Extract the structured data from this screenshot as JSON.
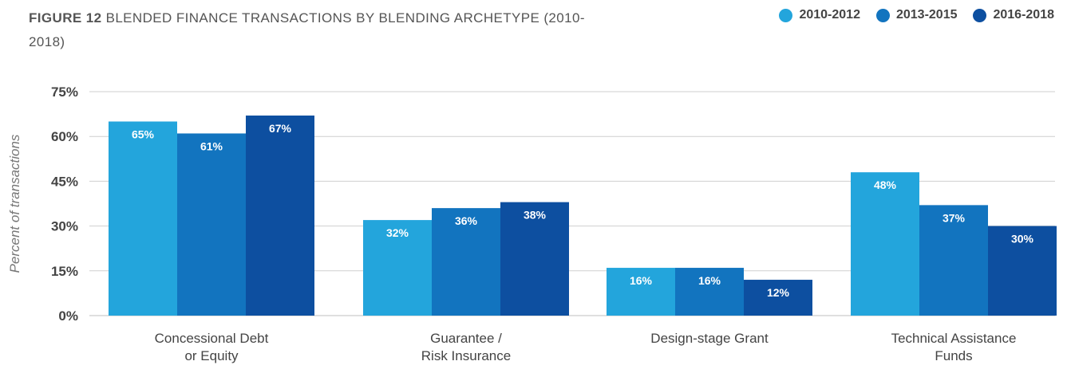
{
  "header": {
    "figure_label": "FIGURE 12",
    "title": "BLENDED FINANCE TRANSACTIONS BY BLENDING ARCHETYPE (2010-2018)"
  },
  "chart_data": {
    "type": "bar",
    "ylabel": "Percent of transactions",
    "xlabel": "",
    "ylim": [
      0,
      75
    ],
    "yticks": [
      "0%",
      "15%",
      "30%",
      "45%",
      "60%",
      "75%"
    ],
    "ytick_values": [
      0,
      15,
      30,
      45,
      60,
      75
    ],
    "grid": true,
    "legend_position": "top-right",
    "categories": [
      [
        "Concessional Debt",
        "or Equity"
      ],
      [
        "Guarantee /",
        "Risk Insurance"
      ],
      [
        "Design-stage Grant"
      ],
      [
        "Technical Assistance",
        "Funds"
      ]
    ],
    "series": [
      {
        "name": "2010-2012",
        "color": "#23a5dc",
        "values": [
          65,
          32,
          16,
          48
        ],
        "labels": [
          "65%",
          "32%",
          "16%",
          "48%"
        ]
      },
      {
        "name": "2013-2015",
        "color": "#1274bf",
        "values": [
          61,
          36,
          16,
          37
        ],
        "labels": [
          "61%",
          "36%",
          "16%",
          "37%"
        ]
      },
      {
        "name": "2016-2018",
        "color": "#0d4fa0",
        "values": [
          67,
          38,
          12,
          30
        ],
        "labels": [
          "67%",
          "38%",
          "12%",
          "30%"
        ]
      }
    ]
  }
}
